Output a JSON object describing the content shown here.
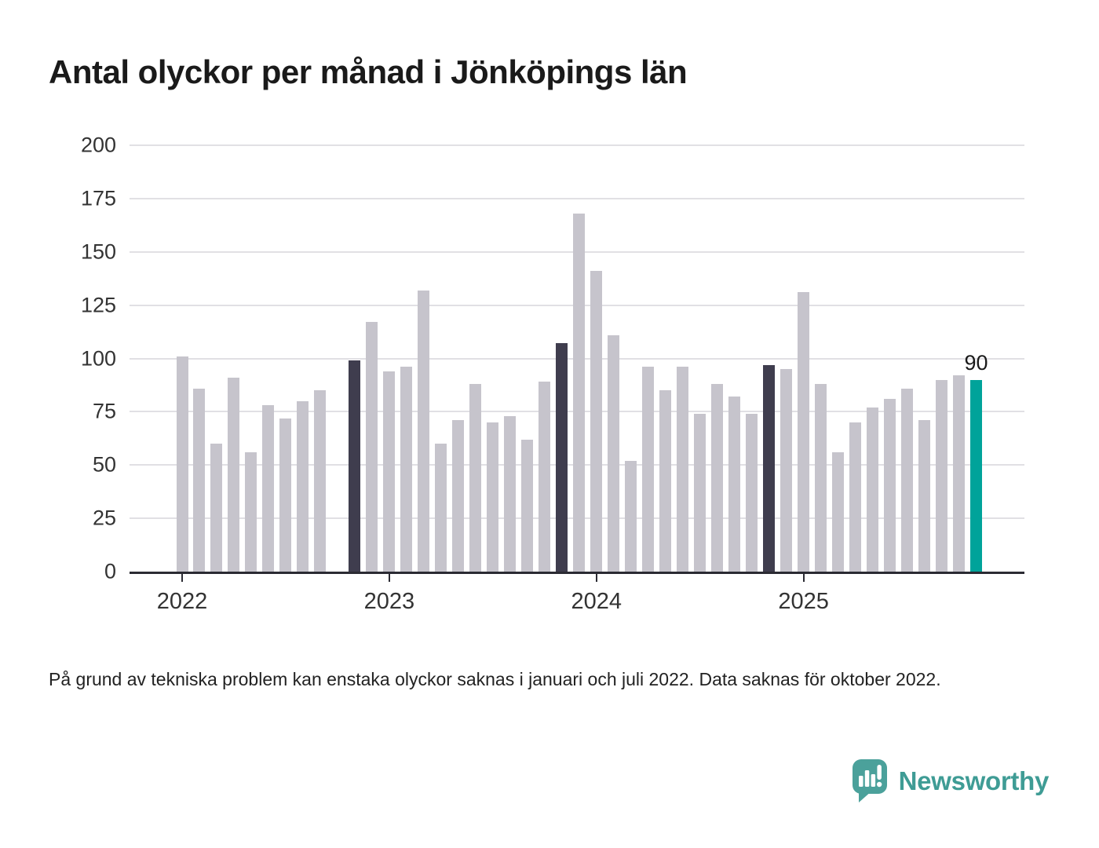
{
  "title": "Antal olyckor per månad i Jönköpings län",
  "footnote": "På grund av tekniska problem kan enstaka olyckor saknas i januari och juli 2022. Data saknas för oktober 2022.",
  "logo": {
    "text": "Newsworthy"
  },
  "colors": {
    "bar": "#c6c4cc",
    "highlight": "#3f3d4e",
    "latest": "#00a39a",
    "grid": "#e1e0e4",
    "axis": "#2b2b33",
    "y_label": "#333333",
    "x_label": "#333333",
    "annotation": "#1a1a1a",
    "logo_mark": "#4ba19b",
    "logo_text": "#3f9c95"
  },
  "chart_data": {
    "type": "bar",
    "title": "Antal olyckor per månad i Jönköpings län",
    "xlabel": "",
    "ylabel": "",
    "ylim": [
      0,
      200
    ],
    "grid": true,
    "y_ticks": [
      0,
      25,
      50,
      75,
      100,
      125,
      150,
      175,
      200
    ],
    "x_ticks": [
      {
        "label": "2022",
        "month": "2022-01"
      },
      {
        "label": "2023",
        "month": "2023-01"
      },
      {
        "label": "2024",
        "month": "2024-01"
      },
      {
        "label": "2025",
        "month": "2025-01"
      }
    ],
    "missing_months": [
      "2022-10"
    ],
    "annotation": {
      "month": "2025-11",
      "text": "90"
    },
    "bars": [
      {
        "month": "2022-01",
        "value": 101,
        "color": "bar"
      },
      {
        "month": "2022-02",
        "value": 86,
        "color": "bar"
      },
      {
        "month": "2022-03",
        "value": 60,
        "color": "bar"
      },
      {
        "month": "2022-04",
        "value": 91,
        "color": "bar"
      },
      {
        "month": "2022-05",
        "value": 56,
        "color": "bar"
      },
      {
        "month": "2022-06",
        "value": 78,
        "color": "bar"
      },
      {
        "month": "2022-07",
        "value": 72,
        "color": "bar"
      },
      {
        "month": "2022-08",
        "value": 80,
        "color": "bar"
      },
      {
        "month": "2022-09",
        "value": 85,
        "color": "bar"
      },
      {
        "month": "2022-11",
        "value": 99,
        "color": "highlight"
      },
      {
        "month": "2022-12",
        "value": 117,
        "color": "bar"
      },
      {
        "month": "2023-01",
        "value": 94,
        "color": "bar"
      },
      {
        "month": "2023-02",
        "value": 96,
        "color": "bar"
      },
      {
        "month": "2023-03",
        "value": 132,
        "color": "bar"
      },
      {
        "month": "2023-04",
        "value": 60,
        "color": "bar"
      },
      {
        "month": "2023-05",
        "value": 71,
        "color": "bar"
      },
      {
        "month": "2023-06",
        "value": 88,
        "color": "bar"
      },
      {
        "month": "2023-07",
        "value": 70,
        "color": "bar"
      },
      {
        "month": "2023-08",
        "value": 73,
        "color": "bar"
      },
      {
        "month": "2023-09",
        "value": 62,
        "color": "bar"
      },
      {
        "month": "2023-10",
        "value": 89,
        "color": "bar"
      },
      {
        "month": "2023-11",
        "value": 107,
        "color": "highlight"
      },
      {
        "month": "2023-12",
        "value": 168,
        "color": "bar"
      },
      {
        "month": "2024-01",
        "value": 141,
        "color": "bar"
      },
      {
        "month": "2024-02",
        "value": 111,
        "color": "bar"
      },
      {
        "month": "2024-03",
        "value": 52,
        "color": "bar"
      },
      {
        "month": "2024-04",
        "value": 96,
        "color": "bar"
      },
      {
        "month": "2024-05",
        "value": 85,
        "color": "bar"
      },
      {
        "month": "2024-06",
        "value": 96,
        "color": "bar"
      },
      {
        "month": "2024-07",
        "value": 74,
        "color": "bar"
      },
      {
        "month": "2024-08",
        "value": 88,
        "color": "bar"
      },
      {
        "month": "2024-09",
        "value": 82,
        "color": "bar"
      },
      {
        "month": "2024-10",
        "value": 74,
        "color": "bar"
      },
      {
        "month": "2024-11",
        "value": 97,
        "color": "highlight"
      },
      {
        "month": "2024-12",
        "value": 95,
        "color": "bar"
      },
      {
        "month": "2025-01",
        "value": 131,
        "color": "bar"
      },
      {
        "month": "2025-02",
        "value": 88,
        "color": "bar"
      },
      {
        "month": "2025-03",
        "value": 56,
        "color": "bar"
      },
      {
        "month": "2025-04",
        "value": 70,
        "color": "bar"
      },
      {
        "month": "2025-05",
        "value": 77,
        "color": "bar"
      },
      {
        "month": "2025-06",
        "value": 81,
        "color": "bar"
      },
      {
        "month": "2025-07",
        "value": 86,
        "color": "bar"
      },
      {
        "month": "2025-08",
        "value": 71,
        "color": "bar"
      },
      {
        "month": "2025-09",
        "value": 90,
        "color": "bar"
      },
      {
        "month": "2025-10",
        "value": 92,
        "color": "bar"
      },
      {
        "month": "2025-11",
        "value": 90,
        "color": "latest"
      }
    ]
  }
}
